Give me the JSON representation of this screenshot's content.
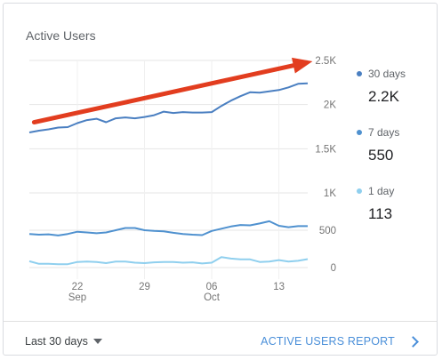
{
  "card": {
    "title": "Active Users",
    "footer": {
      "date_range_label": "Last 30 days",
      "report_link_label": "ACTIVE USERS REPORT"
    }
  },
  "chart_data": {
    "type": "line",
    "title": "Active Users",
    "x_ticks": [
      {
        "day": 6,
        "label": "22",
        "sublabel": "Sep"
      },
      {
        "day": 13,
        "label": "29",
        "sublabel": ""
      },
      {
        "day": 20,
        "label": "06",
        "sublabel": "Oct"
      },
      {
        "day": 27,
        "label": "13",
        "sublabel": ""
      }
    ],
    "upper_y_ticks": [
      1500,
      2000,
      2500
    ],
    "upper_y_tick_labels": [
      "1.5K",
      "2K",
      "2.5K"
    ],
    "upper_ylim": [
      1000,
      2500
    ],
    "lower_y_ticks": [
      0,
      500,
      1000
    ],
    "lower_y_tick_labels": [
      "0",
      "500",
      "1K"
    ],
    "lower_ylim": [
      0,
      1000
    ],
    "grid": true,
    "legend_position": "right",
    "series": [
      {
        "name": "30 days",
        "display_value": "2.2K",
        "color": "#4a7fc1",
        "panel": "upper",
        "values": [
          1685,
          1705,
          1720,
          1740,
          1745,
          1790,
          1825,
          1840,
          1800,
          1845,
          1855,
          1845,
          1860,
          1880,
          1920,
          1905,
          1915,
          1910,
          1910,
          1915,
          1985,
          2045,
          2095,
          2140,
          2135,
          2150,
          2165,
          2195,
          2235,
          2240
        ]
      },
      {
        "name": "7 days",
        "display_value": "550",
        "color": "#4f91cf",
        "panel": "lower",
        "values": [
          450,
          440,
          445,
          430,
          450,
          480,
          470,
          460,
          470,
          500,
          530,
          530,
          500,
          490,
          485,
          465,
          450,
          440,
          435,
          490,
          520,
          550,
          570,
          565,
          590,
          620,
          560,
          540,
          555,
          555
        ]
      },
      {
        "name": "1 day",
        "display_value": "113",
        "color": "#8fcfee",
        "panel": "lower",
        "values": [
          85,
          50,
          50,
          45,
          45,
          75,
          80,
          75,
          60,
          80,
          80,
          65,
          60,
          70,
          75,
          75,
          65,
          70,
          55,
          65,
          140,
          120,
          110,
          110,
          75,
          80,
          100,
          80,
          90,
          113
        ]
      }
    ]
  },
  "annotation": {
    "arrow_color": "#e23d1f",
    "arrow_start": {
      "day": 1.5,
      "value": 1800
    },
    "arrow_end": {
      "day": 30.5,
      "value": 2490
    }
  }
}
